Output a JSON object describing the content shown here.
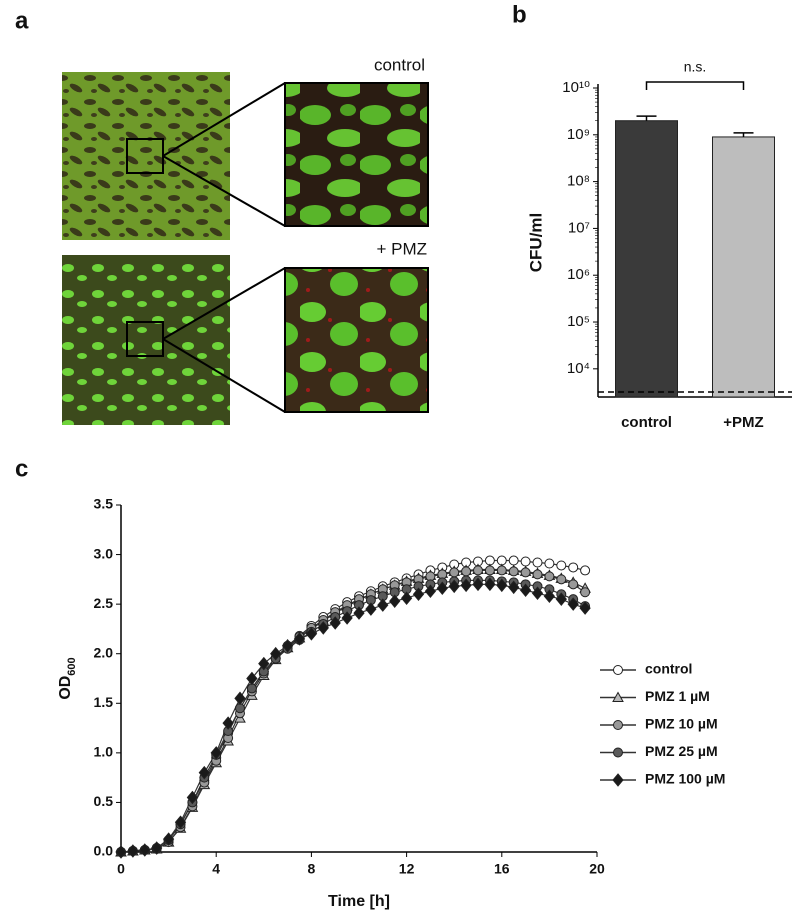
{
  "figure": {
    "panel_labels": [
      "a",
      "b",
      "c"
    ],
    "image_labels": [
      "control",
      "+ PMZ"
    ]
  },
  "chart_data": [
    {
      "type": "bar",
      "ylabel": "CFU/ml",
      "categories": [
        "control",
        "+PMZ"
      ],
      "values": [
        2000000000,
        900000000
      ],
      "errors": [
        500000000,
        200000000
      ],
      "colors": [
        "#3a3a3a",
        "#bdbdbd"
      ],
      "log_scale": true,
      "ylim": [
        2500,
        10000000000
      ],
      "yticks": [
        {
          "value": 10000,
          "label": "10⁴"
        },
        {
          "value": 100000,
          "label": "10⁵"
        },
        {
          "value": 1000000,
          "label": "10⁶"
        },
        {
          "value": 10000000,
          "label": "10⁷"
        },
        {
          "value": 100000000,
          "label": "10⁸"
        },
        {
          "value": 1000000000,
          "label": "10⁹"
        },
        {
          "value": 10000000000,
          "label": "10¹⁰"
        }
      ],
      "reference_line": 3200,
      "annotation": "n.s."
    },
    {
      "type": "line",
      "xlabel": "Time [h]",
      "ylabel": "OD",
      "ylabel_subscript": "600",
      "x": [
        0,
        0.5,
        1,
        1.5,
        2,
        2.5,
        3,
        3.5,
        4,
        4.5,
        5,
        5.5,
        6,
        6.5,
        7,
        7.5,
        8,
        8.5,
        9,
        9.5,
        10,
        10.5,
        11,
        11.5,
        12,
        12.5,
        13,
        13.5,
        14,
        14.5,
        15,
        15.5,
        16,
        16.5,
        17,
        17.5,
        18,
        18.5,
        19,
        19.5
      ],
      "xlim": [
        0,
        20
      ],
      "xticks": [
        0,
        4,
        8,
        12,
        16,
        20
      ],
      "ylim": [
        0,
        3.5
      ],
      "yticks": [
        {
          "value": 0,
          "label": "0.0"
        },
        0.5,
        {
          "value": 1,
          "label": "1.0"
        },
        1.5,
        {
          "value": 2,
          "label": "2.0"
        },
        2.5,
        {
          "value": 3,
          "label": "3.0"
        },
        3.5
      ],
      "series": [
        {
          "name": "control",
          "color": "#ffffff",
          "marker": "circle",
          "values": [
            0,
            0.01,
            0.02,
            0.04,
            0.12,
            0.28,
            0.5,
            0.72,
            0.95,
            1.2,
            1.45,
            1.65,
            1.82,
            1.96,
            2.08,
            2.18,
            2.28,
            2.37,
            2.45,
            2.52,
            2.58,
            2.63,
            2.68,
            2.72,
            2.76,
            2.8,
            2.84,
            2.87,
            2.9,
            2.92,
            2.93,
            2.94,
            2.94,
            2.94,
            2.93,
            2.92,
            2.91,
            2.89,
            2.87,
            2.84
          ]
        },
        {
          "name": "PMZ 1 µM",
          "color": "#b8b8b8",
          "marker": "triangle",
          "values": [
            0,
            0.01,
            0.02,
            0.03,
            0.1,
            0.24,
            0.45,
            0.68,
            0.9,
            1.12,
            1.35,
            1.58,
            1.78,
            1.94,
            2.06,
            2.16,
            2.25,
            2.33,
            2.41,
            2.48,
            2.54,
            2.6,
            2.65,
            2.69,
            2.73,
            2.76,
            2.79,
            2.81,
            2.83,
            2.84,
            2.85,
            2.85,
            2.85,
            2.84,
            2.83,
            2.81,
            2.79,
            2.76,
            2.72,
            2.66
          ]
        },
        {
          "name": "PMZ 10 µM",
          "color": "#999999",
          "marker": "circle",
          "values": [
            0,
            0.01,
            0.02,
            0.03,
            0.1,
            0.25,
            0.46,
            0.7,
            0.92,
            1.15,
            1.4,
            1.62,
            1.8,
            1.95,
            2.07,
            2.17,
            2.26,
            2.34,
            2.42,
            2.49,
            2.55,
            2.6,
            2.65,
            2.69,
            2.72,
            2.75,
            2.78,
            2.8,
            2.82,
            2.83,
            2.84,
            2.84,
            2.84,
            2.83,
            2.82,
            2.8,
            2.78,
            2.75,
            2.7,
            2.62
          ]
        },
        {
          "name": "PMZ 25 µM",
          "color": "#5a5a5a",
          "marker": "circle",
          "values": [
            0,
            0.01,
            0.02,
            0.04,
            0.12,
            0.28,
            0.5,
            0.75,
            0.98,
            1.22,
            1.45,
            1.65,
            1.82,
            1.95,
            2.05,
            2.14,
            2.22,
            2.3,
            2.37,
            2.43,
            2.49,
            2.54,
            2.58,
            2.62,
            2.65,
            2.68,
            2.7,
            2.72,
            2.73,
            2.74,
            2.74,
            2.74,
            2.73,
            2.72,
            2.7,
            2.68,
            2.65,
            2.6,
            2.55,
            2.48
          ]
        },
        {
          "name": "PMZ 100 µM",
          "color": "#1a1a1a",
          "marker": "diamond",
          "values": [
            0,
            0.01,
            0.02,
            0.04,
            0.13,
            0.3,
            0.55,
            0.8,
            1.0,
            1.3,
            1.55,
            1.75,
            1.9,
            2.0,
            2.08,
            2.15,
            2.2,
            2.26,
            2.31,
            2.36,
            2.41,
            2.45,
            2.49,
            2.53,
            2.56,
            2.6,
            2.63,
            2.66,
            2.68,
            2.69,
            2.7,
            2.7,
            2.69,
            2.67,
            2.64,
            2.61,
            2.58,
            2.55,
            2.5,
            2.46
          ]
        }
      ]
    }
  ]
}
